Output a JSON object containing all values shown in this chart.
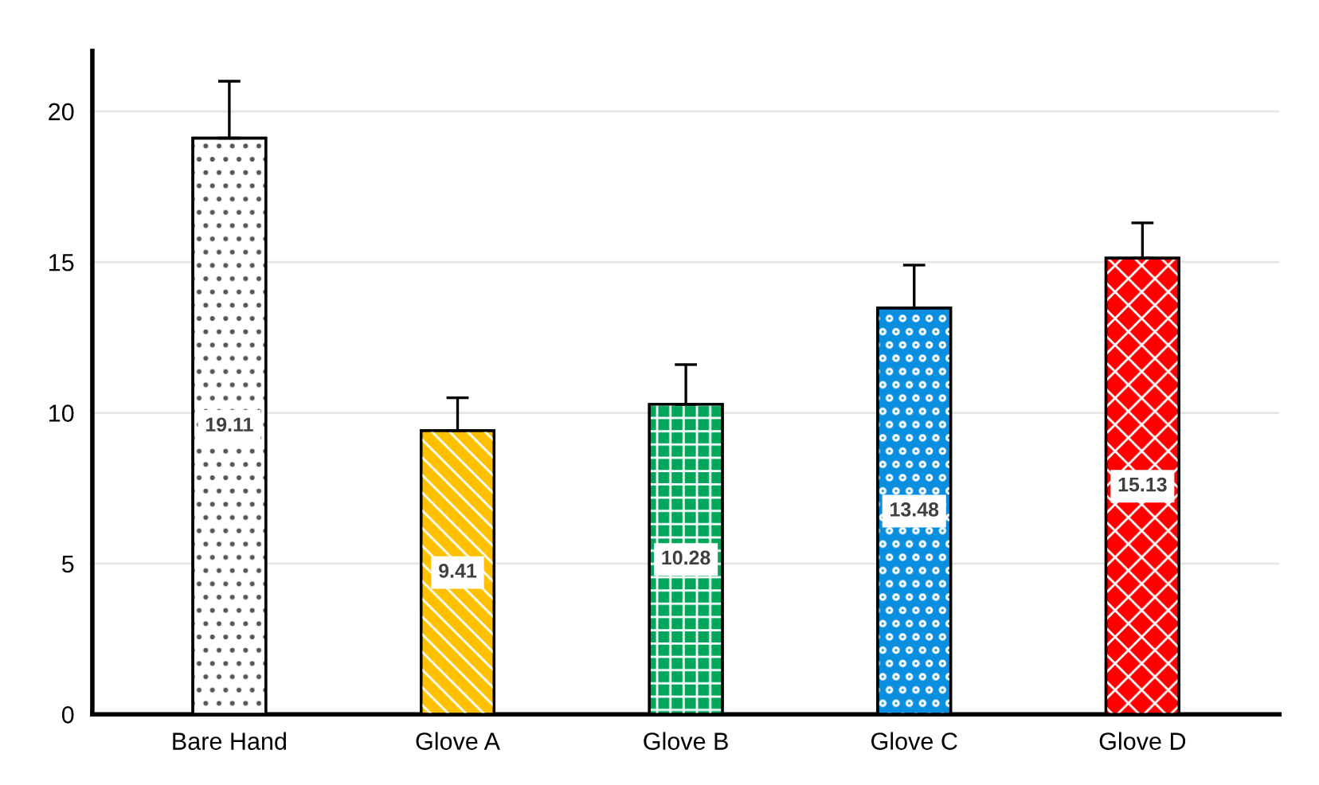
{
  "chart_data": {
    "type": "bar",
    "categories": [
      "Bare Hand",
      "Glove A",
      "Glove B",
      "Glove C",
      "Glove D"
    ],
    "values": [
      19.11,
      9.41,
      10.28,
      13.48,
      15.13
    ],
    "colors": [
      "#ffffff",
      "#ffc000",
      "#00a65a",
      "#0a8ee0",
      "#ff0000"
    ],
    "errors": [
      [
        19.11,
        21.0
      ],
      [
        9.41,
        10.5
      ],
      [
        10.28,
        11.6
      ],
      [
        13.48,
        14.9
      ],
      [
        15.13,
        16.3
      ]
    ],
    "ylim": [
      0,
      22
    ],
    "yticks": [
      0,
      5,
      10,
      15,
      20
    ],
    "grid": "y",
    "data_labels": true
  }
}
